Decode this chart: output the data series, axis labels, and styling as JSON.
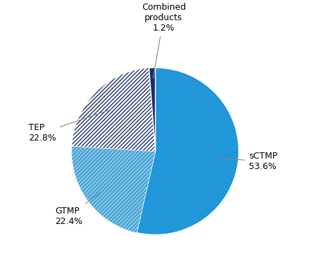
{
  "labels": [
    "sCTMP",
    "GTMP",
    "TEP",
    "Combined products"
  ],
  "values": [
    53.6,
    22.4,
    22.8,
    1.2
  ],
  "sctmp_color": "#2196D9",
  "gtmp_facecolor": "#7DC8E8",
  "gtmp_hatchcolor": "#3A8FCA",
  "tep_facecolor": "#FFFFFF",
  "tep_hatchcolor": "#1A2B6B",
  "combined_color": "#1A2B6B",
  "edge_color": "#FFFFFF",
  "annotation_color": "#000000",
  "line_color": "#888888",
  "background_color": "#ffffff",
  "figsize": [
    4.59,
    3.81
  ],
  "dpi": 100,
  "font_size": 9
}
